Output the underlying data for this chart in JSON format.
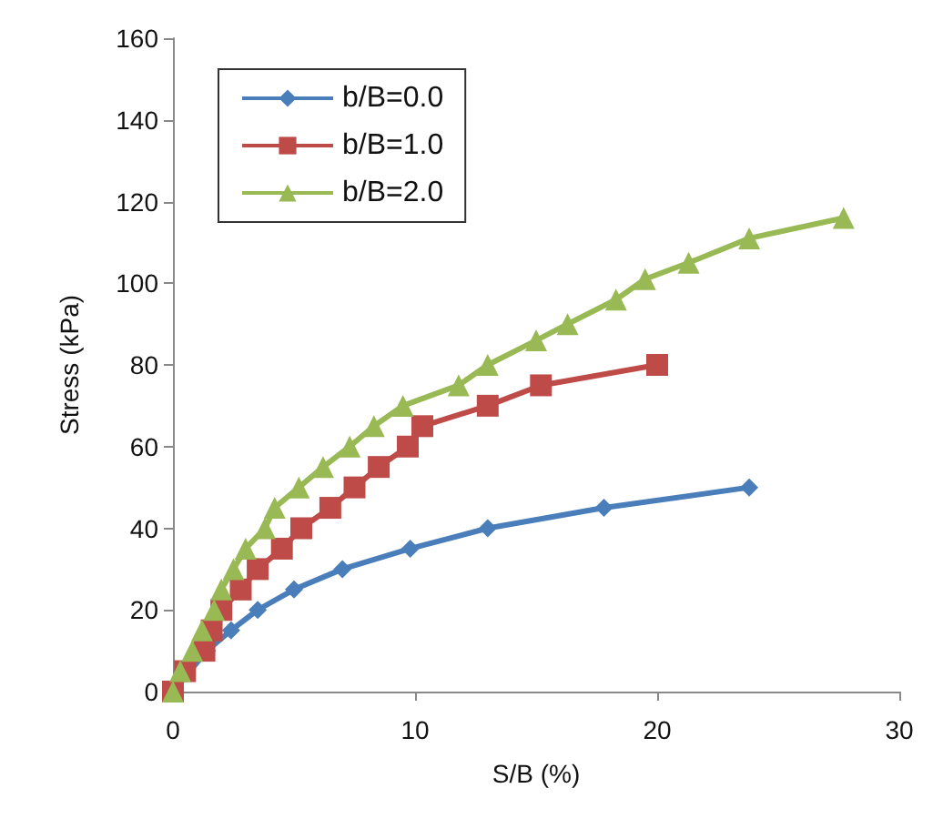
{
  "chart_data": {
    "type": "line",
    "xlabel": "S/B (%)",
    "ylabel": "Stress (kPa)",
    "xlim": [
      0,
      30
    ],
    "xticks": [
      0,
      10,
      20,
      30
    ],
    "ylim": [
      0,
      160
    ],
    "yticks": [
      0,
      20,
      40,
      60,
      80,
      100,
      120,
      140,
      160
    ],
    "grid": false,
    "legend": "top left",
    "series": [
      {
        "name": "b/B=0.0",
        "color": "#4a7ebb",
        "marker": "diamond",
        "x": [
          0,
          1.4,
          2.4,
          3.5,
          5,
          7,
          9.8,
          13,
          17.8,
          23.8
        ],
        "values": [
          0,
          10,
          15,
          20,
          25,
          30,
          35,
          40,
          45,
          50
        ]
      },
      {
        "name": "b/B=1.0",
        "color": "#be4b48",
        "marker": "square",
        "x": [
          0,
          0.5,
          1.3,
          1.6,
          2,
          2.8,
          3.5,
          4.5,
          5.3,
          6.5,
          7.5,
          8.5,
          9.7,
          10.3,
          13,
          15.2,
          20
        ],
        "values": [
          0,
          5,
          10,
          15,
          20,
          25,
          30,
          35,
          40,
          45,
          50,
          55,
          60,
          65,
          70,
          75,
          80
        ]
      },
      {
        "name": "b/B=2.0",
        "color": "#98b954",
        "marker": "triangle",
        "x": [
          0,
          0.3,
          0.8,
          1.2,
          1.7,
          2,
          2.5,
          3,
          3.8,
          4.2,
          5.2,
          6.2,
          7.3,
          8.3,
          9.5,
          11.8,
          13,
          15,
          16.3,
          18.3,
          19.5,
          21.3,
          23.8,
          27.7
        ],
        "values": [
          0,
          5,
          10,
          15,
          20,
          25,
          30,
          35,
          40,
          45,
          50,
          55,
          60,
          65,
          70,
          75,
          80,
          86,
          90,
          96,
          101,
          105,
          111,
          116
        ]
      }
    ]
  }
}
